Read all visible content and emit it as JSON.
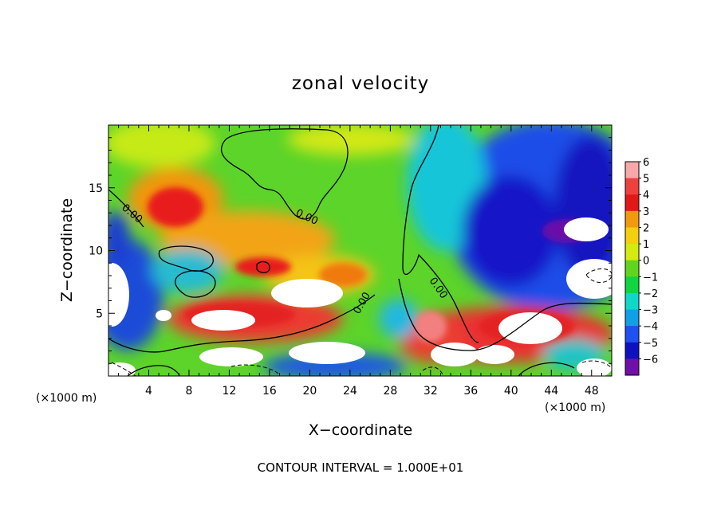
{
  "chart_data": {
    "type": "heatmap",
    "title": "zonal velocity",
    "xlabel": "X−coordinate",
    "ylabel": "Z−coordinate",
    "x_multiplier_label": "(×1000 m)",
    "x_multiplier_label_right": "(×1000 m)",
    "footer": "CONTOUR INTERVAL = 1.000E+01",
    "xlim": [
      0,
      50
    ],
    "ylim": [
      0,
      20
    ],
    "x_ticks": [
      4,
      8,
      12,
      16,
      20,
      24,
      28,
      32,
      36,
      40,
      44,
      48
    ],
    "x_tick_labels": [
      "4",
      "8",
      "12",
      "16",
      "20",
      "24",
      "28",
      "32",
      "36",
      "40",
      "44",
      "48"
    ],
    "y_ticks": [
      5,
      10,
      15
    ],
    "y_tick_labels": [
      "5",
      "10",
      "15"
    ],
    "colorbar": {
      "range": [
        -6,
        6
      ],
      "levels": [
        6,
        5,
        4,
        3,
        2,
        1,
        0,
        -1,
        -2,
        -3,
        -4,
        -5,
        -6
      ],
      "labels": [
        "6",
        "5",
        "4",
        "3",
        "2",
        "1",
        "0",
        "−1",
        "−2",
        "−3",
        "−4",
        "−5",
        "−6"
      ],
      "colors": [
        "#f7a8a8",
        "#ef4040",
        "#e11818",
        "#f19a10",
        "#f3cf10",
        "#d4ea10",
        "#60d520",
        "#10d440",
        "#10d8c8",
        "#10a0e8",
        "#2050f0",
        "#1010c0",
        "#7010a8"
      ]
    },
    "contour_labels": [
      "0.00",
      "0.00",
      "0.00",
      "0.00"
    ],
    "regions": [
      {
        "name": "upper-right-negative",
        "x": [
          28,
          50
        ],
        "z": [
          8,
          20
        ],
        "value": -4.5
      },
      {
        "name": "upper-left-positive-band",
        "x": [
          0,
          24
        ],
        "z": [
          7,
          17
        ],
        "value": 4
      },
      {
        "name": "upper-center-near-zero",
        "x": [
          10,
          30
        ],
        "z": [
          12,
          20
        ],
        "value": 0.5
      },
      {
        "name": "lower-positive-band",
        "x": [
          6,
          50
        ],
        "z": [
          1,
          6
        ],
        "value": 5
      },
      {
        "name": "lower-left-negative",
        "x": [
          0,
          8
        ],
        "z": [
          2,
          12
        ],
        "value": -4
      }
    ]
  }
}
